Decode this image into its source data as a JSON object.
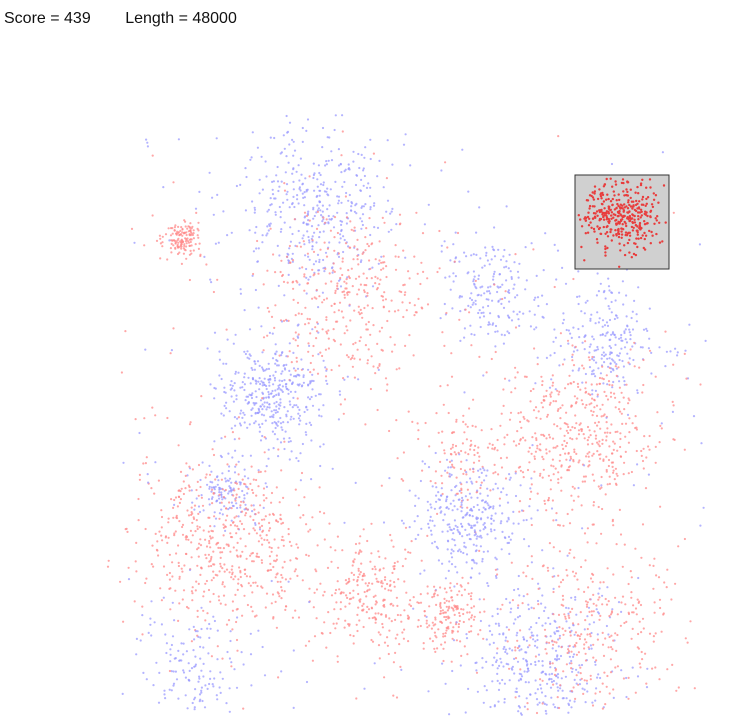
{
  "hud": {
    "score_label": "Score = ",
    "score_value": 439,
    "length_label": "Length = ",
    "length_value": 48000
  },
  "colors": {
    "blue_point": "#9b9bff",
    "red_point": "#ff8a8a",
    "selected_point": "#e83c3c",
    "selection_fill": "#d0d0d0",
    "selection_border": "#333333"
  },
  "clusters": [
    {
      "color": "red",
      "spread": "tight",
      "points": 140
    },
    {
      "color": "blue",
      "spread": "wide",
      "points": 420
    },
    {
      "color": "red",
      "spread": "wide",
      "points": 360
    },
    {
      "color": "blue",
      "spread": "medium",
      "points": 380
    },
    {
      "color": "blue",
      "spread": "medium",
      "points": 180
    },
    {
      "color": "blue",
      "spread": "medium",
      "points": 220
    },
    {
      "color": "red",
      "spread": "wide",
      "points": 460
    },
    {
      "color": "red",
      "spread": "medium",
      "points": 110
    },
    {
      "color": "blue",
      "spread": "medium",
      "points": 300
    },
    {
      "color": "blue",
      "spread": "small",
      "points": 130
    },
    {
      "color": "red",
      "spread": "wide",
      "points": 520
    },
    {
      "color": "red",
      "spread": "medium",
      "points": 240
    },
    {
      "color": "red",
      "spread": "small",
      "points": 160
    },
    {
      "color": "blue",
      "spread": "medium",
      "points": 140
    },
    {
      "color": "blue",
      "spread": "wide",
      "points": 420
    },
    {
      "color": "red",
      "spread": "wide",
      "points": 300
    }
  ],
  "selection": {
    "color": "red",
    "points": 380
  }
}
